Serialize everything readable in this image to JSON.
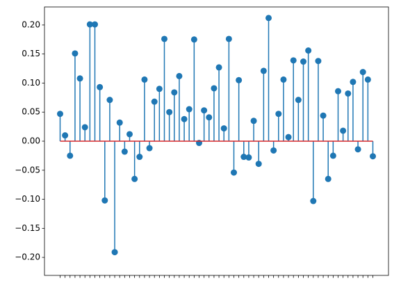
{
  "chart_data": {
    "type": "stem",
    "categories": [
      null,
      null,
      null,
      null,
      null,
      null,
      null,
      null,
      null,
      null,
      null,
      null,
      null,
      null,
      null,
      null,
      null,
      null,
      null,
      null,
      null,
      null,
      null,
      null,
      null,
      null,
      null,
      null,
      null,
      null,
      null,
      null,
      null,
      null,
      null,
      null,
      null,
      null,
      null,
      null,
      null,
      null,
      null,
      null,
      null,
      null,
      null,
      null,
      null,
      null,
      null,
      null,
      null,
      null,
      null,
      null,
      null,
      null,
      null,
      null,
      null,
      null,
      null,
      null
    ],
    "values": [
      0.047,
      0.01,
      -0.025,
      0.151,
      0.108,
      0.024,
      0.201,
      0.201,
      0.093,
      -0.102,
      0.071,
      -0.191,
      0.032,
      -0.018,
      0.012,
      -0.065,
      -0.027,
      0.106,
      -0.012,
      0.068,
      0.09,
      0.176,
      0.05,
      0.084,
      0.112,
      0.038,
      0.055,
      0.175,
      -0.003,
      0.053,
      0.041,
      0.091,
      0.127,
      0.022,
      0.176,
      -0.054,
      0.105,
      -0.027,
      -0.028,
      0.035,
      -0.039,
      0.121,
      0.212,
      -0.016,
      0.047,
      0.106,
      0.007,
      0.139,
      0.071,
      0.137,
      0.156,
      -0.103,
      0.138,
      0.044,
      -0.065,
      -0.025,
      0.086,
      0.018,
      0.082,
      0.102,
      -0.014,
      0.119,
      0.106,
      -0.026
    ],
    "color": "#1f77b4",
    "baseline_color": "#d62728",
    "ylim": [
      -0.231,
      0.231
    ],
    "yticks": [
      {
        "value": -0.2,
        "label": "−0.20"
      },
      {
        "value": -0.15,
        "label": "−0.15"
      },
      {
        "value": -0.1,
        "label": "−0.10"
      },
      {
        "value": -0.05,
        "label": "−0.05"
      },
      {
        "value": 0,
        "label": "0.00"
      },
      {
        "value": 0.05,
        "label": "0.05"
      },
      {
        "value": 0.1,
        "label": "0.10"
      },
      {
        "value": 0.15,
        "label": "0.15"
      },
      {
        "value": 0.2,
        "label": "0.20"
      }
    ]
  }
}
